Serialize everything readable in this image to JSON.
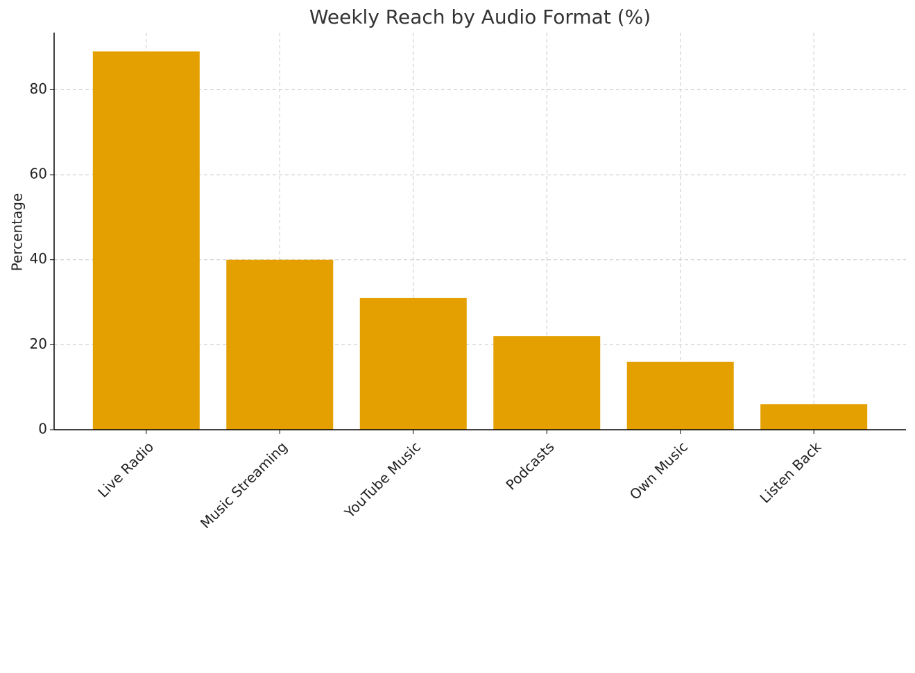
{
  "chart_data": {
    "type": "bar",
    "title": "Weekly Reach by Audio Format (%)",
    "y_label": "Percentage",
    "categories": [
      "Live Radio",
      "Music Streaming",
      "YouTube Music",
      "Podcasts",
      "Own Music",
      "Listen Back"
    ],
    "values": [
      89,
      40,
      31,
      22,
      16,
      6
    ],
    "color": "#e3a000",
    "ylim": [
      0,
      93.45
    ],
    "yticks": [
      0,
      20,
      40,
      60,
      80
    ],
    "grid": true
  }
}
